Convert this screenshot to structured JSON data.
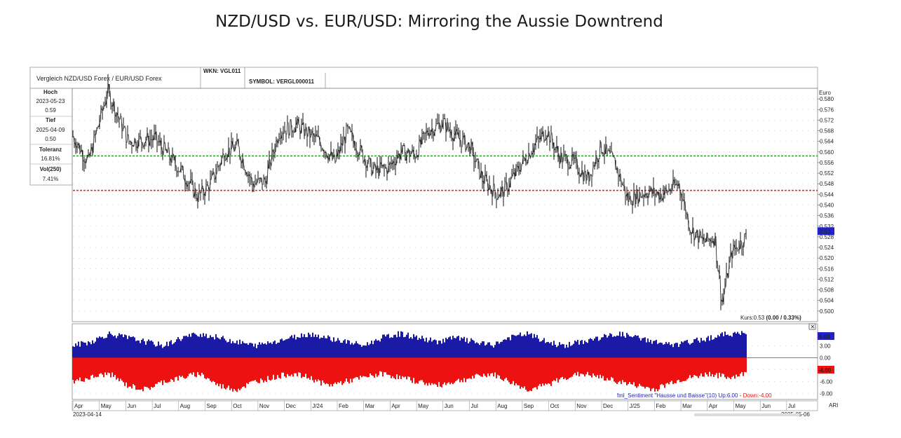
{
  "title": "NZD/USD vs. EUR/USD: Mirroring the Aussie Downtrend",
  "header": {
    "comparison": "Vergleich NZD/USD Forex / EUR/USD Forex",
    "wkn": "WKN: VGL011",
    "symbol": "SYMBOL: VERGL000011"
  },
  "info_panel": {
    "hoch_label": "Hoch",
    "hoch_date": "2023-05-23",
    "hoch_value": "0.59",
    "tief_label": "Tief",
    "tief_date": "2025-04-09",
    "tief_value": "0.50",
    "toleranz_label": "Toleranz",
    "toleranz_value": "16.81%",
    "vol_label": "Vol(250)",
    "vol_value": "7.41%"
  },
  "kurs_text": "Kurs:0.53",
  "kurs_change": "(0.00 / 0.33%)",
  "colors": {
    "price": "#111111",
    "green_line": "#22a022",
    "red_line": "#e03030",
    "bull": "#1a1aa6",
    "bear": "#ee1111",
    "current_box": "#2222cc"
  },
  "chart_data": [
    {
      "type": "line",
      "unit_label": "Euro",
      "ylim": [
        0.496,
        0.584
      ],
      "yticks": [
        "0.580",
        "0.576",
        "0.572",
        "0.568",
        "0.564",
        "0.560",
        "0.556",
        "0.552",
        "0.548",
        "0.544",
        "0.540",
        "0.536",
        "0.532",
        "0.528",
        "0.524",
        "0.520",
        "0.516",
        "0.512",
        "0.508",
        "0.504",
        "0.500"
      ],
      "current_value": "0.53",
      "support_green": 0.5585,
      "support_red": 0.5455,
      "x": [
        "2023-04-14",
        "2023-05-01",
        "2023-05-23",
        "2023-06-15",
        "2023-07-15",
        "2023-08-15",
        "2023-09-01",
        "2023-09-15",
        "2023-10-01",
        "2023-10-15",
        "2023-11-01",
        "2023-11-15",
        "2023-12-01",
        "2023-12-20",
        "2024-01-15",
        "2024-02-01",
        "2024-02-15",
        "2024-03-01",
        "2024-03-15",
        "2024-04-01",
        "2024-04-15",
        "2024-05-01",
        "2024-05-15",
        "2024-06-01",
        "2024-06-15",
        "2024-07-01",
        "2024-07-15",
        "2024-08-01",
        "2024-08-10",
        "2024-08-25",
        "2024-09-10",
        "2024-09-25",
        "2024-10-10",
        "2024-10-25",
        "2024-11-10",
        "2024-11-25",
        "2024-12-10",
        "2024-12-25",
        "2025-01-15",
        "2025-02-01",
        "2025-02-20",
        "2025-03-05",
        "2025-03-20",
        "2025-04-01",
        "2025-04-09",
        "2025-04-20",
        "2025-05-06"
      ],
      "y": [
        0.566,
        0.556,
        0.583,
        0.564,
        0.565,
        0.552,
        0.543,
        0.548,
        0.56,
        0.562,
        0.548,
        0.549,
        0.568,
        0.57,
        0.564,
        0.556,
        0.568,
        0.56,
        0.553,
        0.554,
        0.56,
        0.559,
        0.568,
        0.571,
        0.566,
        0.562,
        0.55,
        0.544,
        0.546,
        0.554,
        0.562,
        0.568,
        0.558,
        0.556,
        0.55,
        0.562,
        0.556,
        0.542,
        0.545,
        0.544,
        0.548,
        0.531,
        0.526,
        0.528,
        0.503,
        0.522,
        0.528
      ],
      "xlabels": [
        "Apr",
        "May",
        "Jun",
        "Jul",
        "Aug",
        "Sep",
        "Oct",
        "Nov",
        "Dec",
        "J/24",
        "Feb",
        "Mar",
        "Apr",
        "May",
        "Jun",
        "Jul",
        "Aug",
        "Sep",
        "Oct",
        "Nov",
        "Dec",
        "J/25",
        "Feb",
        "Mar",
        "Apr",
        "May",
        "Jun",
        "Jul"
      ],
      "start_date": "2023-04-14",
      "end_date": "2025-05-06",
      "x_axis_tag": "ARI"
    },
    {
      "type": "bar",
      "name": "fml_Sentiment \"Hausse und Baisse\"(10)",
      "legend_up": "Up:6.00",
      "legend_sep": "-",
      "legend_down": "Down:-4.00",
      "ylim": [
        -10.5,
        8.5
      ],
      "yticks": [
        "3.00",
        "0.00",
        "-3.00",
        "-6.00",
        "-9.00"
      ],
      "current_up": "6.00",
      "current_down": "-4.00",
      "up": [
        3,
        4,
        6,
        5,
        4,
        3,
        5,
        6,
        5,
        4,
        3,
        4,
        5,
        6,
        5,
        4,
        3,
        5,
        6,
        5,
        4,
        5,
        4,
        3,
        5,
        6,
        4,
        3,
        4,
        5,
        6,
        5,
        4,
        3,
        4,
        5,
        6,
        6
      ],
      "down": [
        -6,
        -5,
        -4,
        -7,
        -8,
        -6,
        -5,
        -4,
        -7,
        -8,
        -6,
        -5,
        -4,
        -5,
        -7,
        -6,
        -5,
        -4,
        -5,
        -6,
        -7,
        -6,
        -5,
        -4,
        -6,
        -8,
        -7,
        -5,
        -4,
        -5,
        -6,
        -7,
        -8,
        -6,
        -5,
        -4,
        -5,
        -4
      ]
    }
  ]
}
